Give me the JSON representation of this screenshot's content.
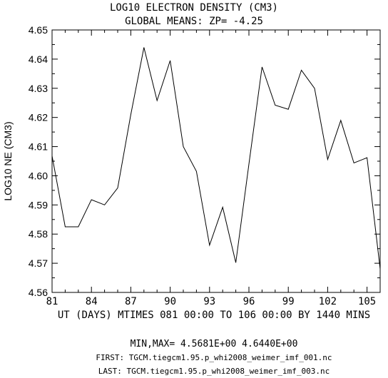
{
  "chart_data": {
    "type": "line",
    "title": "LOG10 ELECTRON DENSITY (CM3)",
    "subtitle": "GLOBAL MEANS: ZP= -4.25",
    "ylabel": "LOG10 NE (CM3)",
    "xlabel": "UT (DAYS) MTIMES 081 00:00 TO 106 00:00 BY 1440 MINS",
    "xlim": [
      81,
      106
    ],
    "ylim": [
      4.56,
      4.65
    ],
    "xticks": [
      81,
      84,
      87,
      90,
      93,
      96,
      99,
      102,
      105
    ],
    "yticks": [
      "4.56",
      "4.57",
      "4.58",
      "4.59",
      "4.60",
      "4.61",
      "4.62",
      "4.63",
      "4.64",
      "4.65"
    ],
    "grid": false,
    "series": [
      {
        "x": [
          81,
          82,
          83,
          84,
          85,
          86,
          87,
          88,
          89,
          90,
          91,
          92,
          93,
          94,
          95,
          96,
          97,
          98,
          99,
          100,
          101,
          102,
          103,
          104,
          105,
          106
        ],
        "values": [
          4.6068,
          4.5825,
          4.5825,
          4.5918,
          4.59,
          4.5958,
          4.621,
          4.644,
          4.6258,
          4.6395,
          4.61,
          4.6015,
          4.5762,
          4.5892,
          4.5702,
          4.604,
          4.6373,
          4.6242,
          4.6228,
          4.6362,
          4.63,
          4.6056,
          4.619,
          4.6044,
          4.6062,
          4.5681
        ]
      }
    ]
  },
  "footer": {
    "minmax": "MIN,MAX=  4.5681E+00  4.6440E+00",
    "first": "FIRST: TGCM.tiegcm1.95.p_whi2008_weimer_imf_001.nc",
    "last": "LAST:  TGCM.tiegcm1.95.p_whi2008_weimer_imf_003.nc"
  }
}
